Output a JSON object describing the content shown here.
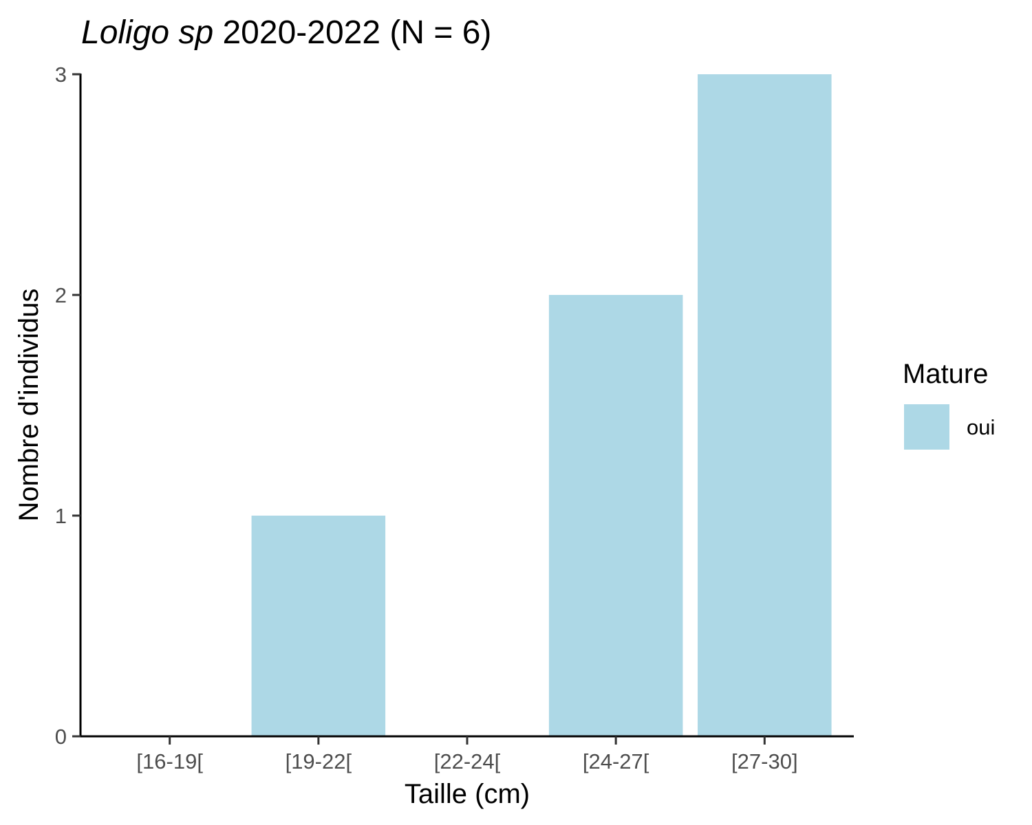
{
  "chart_data": {
    "type": "bar",
    "title": {
      "italic": "Loligo sp",
      "rest": " 2020-2022 (N = 6)"
    },
    "xlabel": "Taille (cm)",
    "ylabel": "Nombre d'individus",
    "categories": [
      "[16-19[",
      "[19-22[",
      "[22-24[",
      "[24-27[",
      "[27-30]"
    ],
    "series": [
      {
        "name": "oui",
        "values": [
          0,
          1,
          0,
          2,
          3
        ],
        "color": "#ADD8E6"
      }
    ],
    "ylim": [
      0,
      3
    ],
    "yticks": [
      0,
      1,
      2,
      3
    ],
    "grid": false,
    "legend": {
      "title": "Mature",
      "position": "right"
    }
  }
}
